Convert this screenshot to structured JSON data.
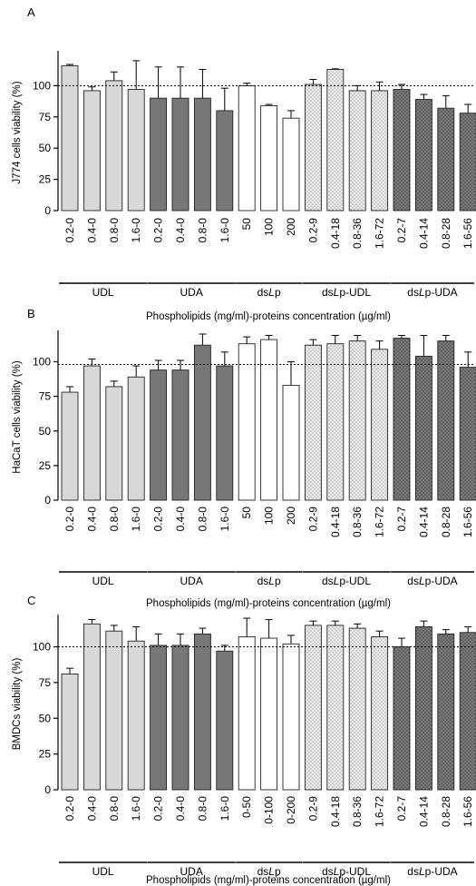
{
  "chart_data": [
    {
      "type": "bar",
      "panel": "A",
      "ylabel_parts": [
        {
          "t": "J774 cells viability (%)",
          "i": false
        }
      ],
      "xlabel": "Phospholipids (mg/ml)-proteins concentration (µg/ml)",
      "ylim": [
        0,
        125
      ],
      "yticks": [
        0,
        25,
        50,
        75,
        100
      ],
      "reference_line": 100,
      "categories": [
        "0.2-0",
        "0.4-0",
        "0.8-0",
        "1.6-0",
        "0.2-0",
        "0.4-0",
        "0.8-0",
        "1.6-0",
        "50",
        "100",
        "200",
        "0.2-9",
        "0.4-18",
        "0.8-36",
        "1.6-72",
        "0.2-7",
        "0.4-14",
        "0.8-28",
        "1.6-56"
      ],
      "values": [
        116,
        96,
        104,
        97,
        90,
        90,
        90,
        80,
        100,
        84,
        74,
        101,
        113,
        96,
        96,
        97,
        89,
        82,
        78
      ],
      "errors": [
        1,
        3,
        7,
        23,
        25,
        25,
        23,
        18,
        2,
        1,
        6,
        4,
        0.5,
        4,
        7,
        4,
        4,
        10,
        7
      ],
      "groups": [
        {
          "parts": [
            {
              "t": "UDL",
              "i": false
            }
          ],
          "start": 0,
          "end": 3,
          "fill": "#d8d8d8",
          "dots": false
        },
        {
          "parts": [
            {
              "t": "UDA",
              "i": false
            }
          ],
          "start": 4,
          "end": 7,
          "fill": "#777777",
          "dots": false
        },
        {
          "parts": [
            {
              "t": "ds",
              "i": false
            },
            {
              "t": "L",
              "i": true
            },
            {
              "t": "p",
              "i": false
            }
          ],
          "start": 8,
          "end": 10,
          "fill": "#ffffff",
          "dots": false
        },
        {
          "parts": [
            {
              "t": "ds",
              "i": false
            },
            {
              "t": "L",
              "i": true
            },
            {
              "t": "p-UDL",
              "i": false
            }
          ],
          "start": 11,
          "end": 14,
          "fill": "#ececec",
          "dots": true
        },
        {
          "parts": [
            {
              "t": "ds",
              "i": false
            },
            {
              "t": "L",
              "i": true
            },
            {
              "t": "p-UDA",
              "i": false
            }
          ],
          "start": 15,
          "end": 18,
          "fill": "#7a7a7a",
          "dots": true
        }
      ]
    },
    {
      "type": "bar",
      "panel": "B",
      "ylabel_parts": [
        {
          "t": "HaCaT cells viability (%)",
          "i": false
        }
      ],
      "xlabel": "Phospholipids (mg/ml)-proteins concentration (µg/ml)",
      "ylim": [
        0,
        120
      ],
      "yticks": [
        0,
        25,
        50,
        75,
        100
      ],
      "reference_line": 98,
      "categories": [
        "0.2-0",
        "0.4-0",
        "0.8-0",
        "1.6-0",
        "0.2-0",
        "0.4-0",
        "0.8-0",
        "1.6-0",
        "50",
        "100",
        "200",
        "0.2-9",
        "0.4-18",
        "0.8-36",
        "1.6-72",
        "0.2-7",
        "0.4-14",
        "0.8-28",
        "1.6-56"
      ],
      "values": [
        78,
        97,
        82,
        89,
        94,
        94,
        112,
        97,
        113,
        116,
        83,
        112,
        113,
        115,
        109,
        117,
        104,
        115,
        96
      ],
      "errors": [
        4,
        5,
        4,
        8,
        7,
        7,
        8,
        10,
        5,
        3,
        17,
        4,
        6,
        4,
        6,
        2,
        15,
        4,
        11
      ],
      "groups": [
        {
          "parts": [
            {
              "t": "UDL",
              "i": false
            }
          ],
          "start": 0,
          "end": 3,
          "fill": "#d8d8d8",
          "dots": false
        },
        {
          "parts": [
            {
              "t": "UDA",
              "i": false
            }
          ],
          "start": 4,
          "end": 7,
          "fill": "#777777",
          "dots": false
        },
        {
          "parts": [
            {
              "t": "ds",
              "i": false
            },
            {
              "t": "L",
              "i": true
            },
            {
              "t": "p",
              "i": false
            }
          ],
          "start": 8,
          "end": 10,
          "fill": "#ffffff",
          "dots": false
        },
        {
          "parts": [
            {
              "t": "ds",
              "i": false
            },
            {
              "t": "L",
              "i": true
            },
            {
              "t": "p-UDL",
              "i": false
            }
          ],
          "start": 11,
          "end": 14,
          "fill": "#ececec",
          "dots": true
        },
        {
          "parts": [
            {
              "t": "ds",
              "i": false
            },
            {
              "t": "L",
              "i": true
            },
            {
              "t": "p-UDA",
              "i": false
            }
          ],
          "start": 15,
          "end": 18,
          "fill": "#7a7a7a",
          "dots": true
        }
      ]
    },
    {
      "type": "bar",
      "panel": "C",
      "ylabel_parts": [
        {
          "t": "BMDCs viability (%)",
          "i": false
        }
      ],
      "xlabel": "Phospholipids (mg/ml)-proteins concentration (µg/ml)",
      "ylim": [
        0,
        120
      ],
      "yticks": [
        0,
        25,
        50,
        75,
        100
      ],
      "reference_line": 100,
      "categories": [
        "0.2-0",
        "0.4-0",
        "0.8-0",
        "1.6-0",
        "0.2-0",
        "0.4-0",
        "0.8-0",
        "1.6-0",
        "0-50",
        "0-100",
        "0-200",
        "0.2-9",
        "0.4-18",
        "0.8-36",
        "1.6-72",
        "0.2-7",
        "0.4-14",
        "0.8-28",
        "1.6-56"
      ],
      "values": [
        81,
        116,
        111,
        104,
        101,
        101,
        109,
        97,
        107,
        106,
        102,
        115,
        115,
        113,
        107,
        100,
        114,
        109,
        110
      ],
      "errors": [
        4,
        3,
        4,
        10,
        8,
        8,
        4,
        4,
        13,
        13,
        6,
        3,
        3,
        3,
        4,
        6,
        4,
        3,
        4
      ],
      "groups": [
        {
          "parts": [
            {
              "t": "UDL",
              "i": false
            }
          ],
          "start": 0,
          "end": 3,
          "fill": "#d8d8d8",
          "dots": false
        },
        {
          "parts": [
            {
              "t": "UDA",
              "i": false
            }
          ],
          "start": 4,
          "end": 7,
          "fill": "#777777",
          "dots": false
        },
        {
          "parts": [
            {
              "t": "ds",
              "i": false
            },
            {
              "t": "L",
              "i": true
            },
            {
              "t": "p",
              "i": false
            }
          ],
          "start": 8,
          "end": 10,
          "fill": "#ffffff",
          "dots": false
        },
        {
          "parts": [
            {
              "t": "ds",
              "i": false
            },
            {
              "t": "L",
              "i": true
            },
            {
              "t": "p-UDL",
              "i": false
            }
          ],
          "start": 11,
          "end": 14,
          "fill": "#ececec",
          "dots": true
        },
        {
          "parts": [
            {
              "t": "ds",
              "i": false
            },
            {
              "t": "L",
              "i": true
            },
            {
              "t": "p-UDA",
              "i": false
            }
          ],
          "start": 15,
          "end": 18,
          "fill": "#7a7a7a",
          "dots": true
        }
      ]
    }
  ]
}
